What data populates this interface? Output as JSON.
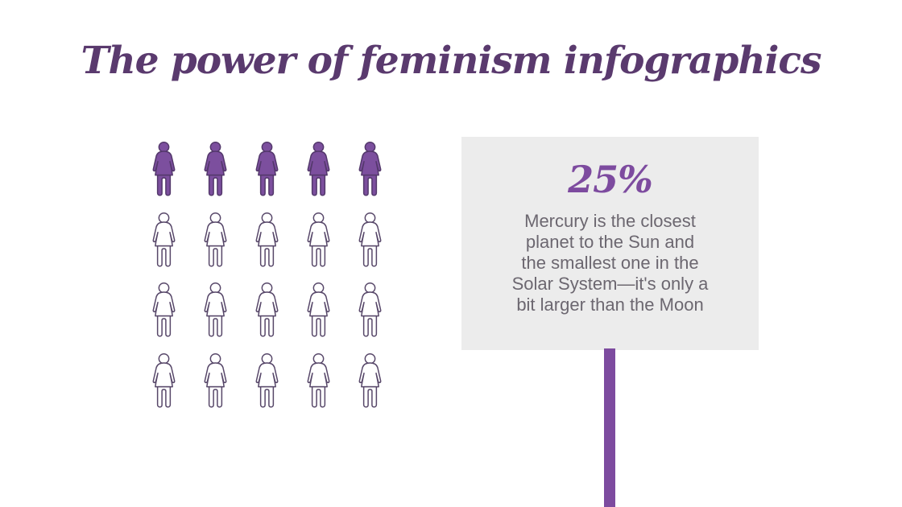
{
  "slide": {
    "title": "The power of feminism infographics",
    "title_color": "#5a3a6e",
    "background_color": "#ffffff"
  },
  "chart_data": {
    "type": "pictogram",
    "title": "The power of feminism infographics",
    "unit_icon": "woman-icon",
    "rows": 4,
    "columns": 5,
    "total_units": 20,
    "filled_units": 5,
    "filled_value_label": "25%",
    "legend_position": "none",
    "grid": "off",
    "colors": {
      "filled_fill": "#7c4f9e",
      "filled_stroke": "#53386b",
      "outline_fill": "#ffffff",
      "outline_stroke": "#574769"
    }
  },
  "sign": {
    "value": "25%",
    "description_lines": [
      "Mercury is the closest",
      "planet to the Sun and",
      "the smallest one in the",
      "Solar System—it's only a",
      "bit larger than the Moon"
    ],
    "background_color": "#ececec",
    "value_color": "#7d4b9f",
    "text_color": "#6c6770",
    "pole_color": "#7d4b9f"
  }
}
